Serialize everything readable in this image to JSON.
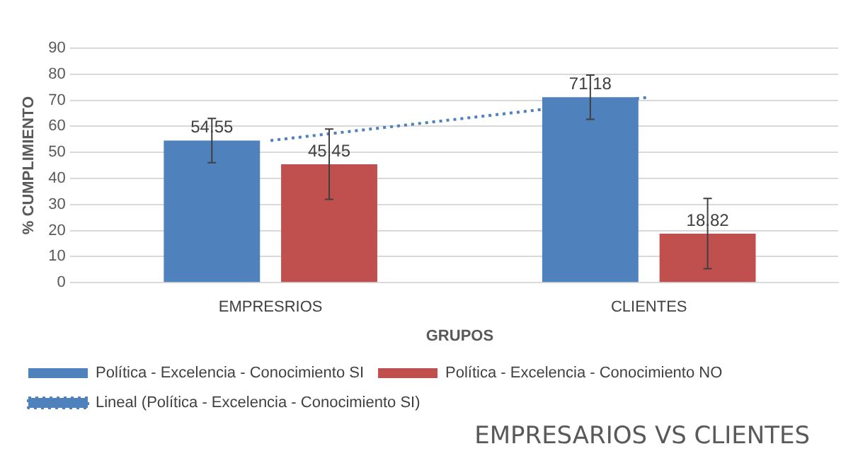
{
  "chart_data": {
    "type": "bar",
    "title": "EMPRESARIOS VS CLIENTES",
    "xlabel": "GRUPOS",
    "ylabel": "% CUMPLIMIENTO",
    "categories": [
      "EMPRESRIOS",
      "CLIENTES"
    ],
    "series": [
      {
        "name": "Política - Excelencia - Conocimiento SI",
        "color": "#4f81bd",
        "values": [
          54.55,
          71.18
        ],
        "value_labels": [
          "54.55",
          "71.18"
        ],
        "errors": [
          8.5,
          8.5
        ]
      },
      {
        "name": "Política - Excelencia - Conocimiento NO",
        "color": "#c0504d",
        "values": [
          45.45,
          18.82
        ],
        "value_labels": [
          "45.45",
          "18.82"
        ],
        "errors": [
          13.5,
          13.5
        ]
      },
      {
        "name": "Lineal (Política - Excelencia - Conocimiento SI)",
        "type": "line",
        "color": "#4f81bd",
        "line_style": "dotted",
        "marker": "none",
        "values": [
          54.55,
          71.18
        ]
      }
    ],
    "ylim": [
      0,
      90
    ],
    "yticks": [
      0,
      10,
      20,
      30,
      40,
      50,
      60,
      70,
      80,
      90
    ],
    "grid": "y",
    "legend": "bottom"
  }
}
